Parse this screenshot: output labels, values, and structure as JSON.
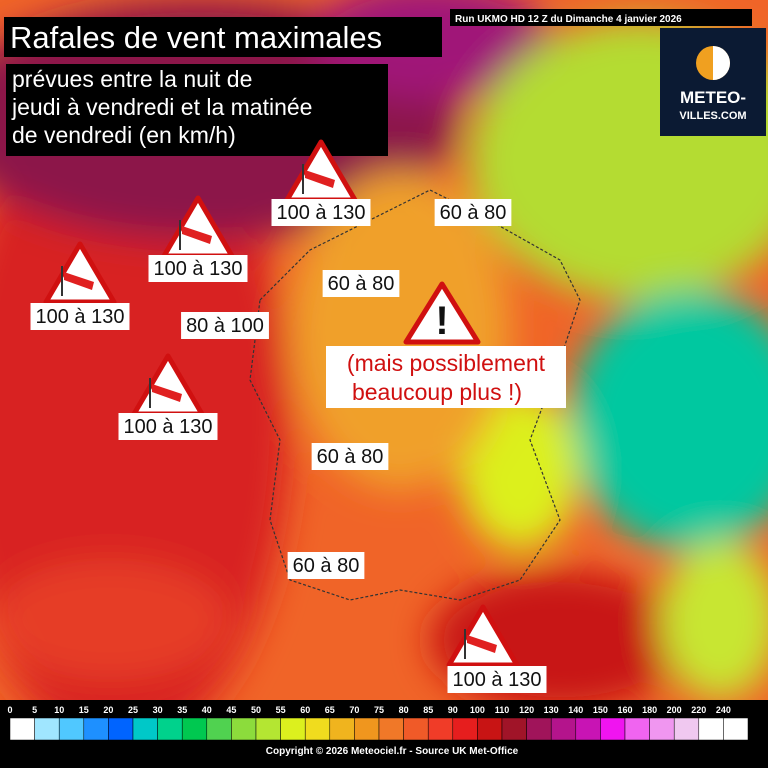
{
  "header": {
    "title": "Rafales de vent maximales",
    "subtitle_lines": [
      "prévues entre la nuit de",
      "jeudi à vendredi et la matinée",
      "de vendredi  (en km/h)"
    ],
    "run": "Run UKMO HD 12 Z du Dimanche 4 janvier 2026"
  },
  "logo": {
    "lines": [
      "METEO-",
      "VILLES.COM"
    ]
  },
  "labels": [
    "100 à 130",
    "100 à 130",
    "100 à 130",
    "100 à 130",
    "100 à 130",
    "60 à 80",
    "60 à 80",
    "80 à 100",
    "60 à 80",
    "60 à 80"
  ],
  "note": {
    "lines": [
      "(mais possiblement",
      "beaucoup plus !)"
    ]
  },
  "legend": {
    "ticks": [
      0,
      5,
      10,
      15,
      20,
      25,
      30,
      35,
      40,
      45,
      50,
      55,
      60,
      65,
      70,
      75,
      80,
      85,
      90,
      100,
      110,
      120,
      130,
      140,
      150,
      160,
      180,
      200,
      220,
      240
    ],
    "colors": [
      "#ffffff",
      "#a0e6ff",
      "#50c8ff",
      "#1e90ff",
      "#0064ff",
      "#00c8c8",
      "#00d28c",
      "#00c850",
      "#50d250",
      "#8cdc3c",
      "#b4e632",
      "#dcf01e",
      "#f0dc1e",
      "#f0b41e",
      "#f0961e",
      "#f07828",
      "#f05a28",
      "#f03c28",
      "#e61e1e",
      "#c81414",
      "#a01428",
      "#a0145a",
      "#b4148c",
      "#c814b4",
      "#f014f0",
      "#f064f0",
      "#f096f0",
      "#f0c8f0",
      "#ffffff",
      "#ffffff"
    ]
  },
  "footer": "Copyright © 2026 Meteociel.fr - Source UK Met-Office"
}
